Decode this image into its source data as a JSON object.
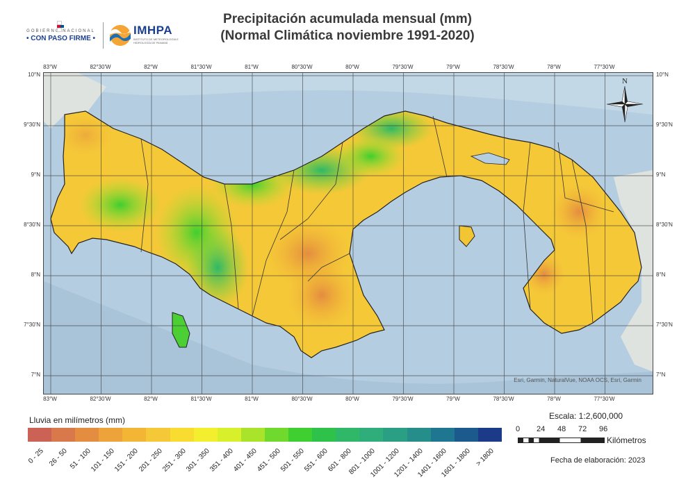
{
  "header": {
    "gobierno_top": "GOBIERNO NACIONAL",
    "gobierno_main": "• CON PASO FIRME •",
    "imhpa_name": "IMHPA",
    "imhpa_sub": "INSTITUTO DE METEOROLOGÍA E HIDROLOGÍA DE PANAMÁ",
    "title_line1": "Precipitación acumulada mensual (mm)",
    "title_line2": "(Normal Climática noviembre 1991-2020)"
  },
  "map": {
    "lon_ticks": [
      "83°W",
      "82°30'W",
      "82°W",
      "81°30'W",
      "81°W",
      "80°30'W",
      "80°W",
      "79°30'W",
      "79°W",
      "78°30'W",
      "78°W",
      "77°30'W"
    ],
    "lat_ticks": [
      "10°N",
      "9°30'N",
      "9°N",
      "8°30'N",
      "8°N",
      "7°30'N",
      "7°N"
    ],
    "north_label": "N",
    "attribution": "Esri, Garmin, NaturalVue, NOAA OCS, Esri, Garmin",
    "colors": {
      "ocean": "#b4cde0",
      "land_bg": "#dfe3df",
      "border": "#222222"
    }
  },
  "legend": {
    "title": "Lluvia en milímetros (mm)",
    "classes": [
      {
        "label": "0 - 25",
        "color": "#cc6155"
      },
      {
        "label": "26 - 50",
        "color": "#d9784a"
      },
      {
        "label": "51 - 100",
        "color": "#e48c40"
      },
      {
        "label": "101 - 150",
        "color": "#eea23a"
      },
      {
        "label": "151 - 200",
        "color": "#f2b535"
      },
      {
        "label": "201 - 250",
        "color": "#f5c838"
      },
      {
        "label": "251 - 300",
        "color": "#f8dc30"
      },
      {
        "label": "301 - 350",
        "color": "#f3ef2e"
      },
      {
        "label": "351 - 400",
        "color": "#d8ef2c"
      },
      {
        "label": "401 - 450",
        "color": "#a9e32a"
      },
      {
        "label": "451 - 500",
        "color": "#6fd92e"
      },
      {
        "label": "501 - 550",
        "color": "#3fcf30"
      },
      {
        "label": "551 - 600",
        "color": "#2fc24a"
      },
      {
        "label": "601 - 800",
        "color": "#2fb867"
      },
      {
        "label": "801 - 1000",
        "color": "#2fae7c"
      },
      {
        "label": "1001 - 1200",
        "color": "#2a9f84"
      },
      {
        "label": "1201 - 1400",
        "color": "#258e8a"
      },
      {
        "label": "1401 - 1600",
        "color": "#1f7690"
      },
      {
        "label": "1601 - 1800",
        "color": "#1c5a8e"
      },
      {
        "label": "> 1800",
        "color": "#1b3a88"
      }
    ]
  },
  "scale": {
    "label": "Escala: 1:2,600,000",
    "numbers": [
      "0",
      "24",
      "48",
      "72",
      "96"
    ],
    "unit": "Kilómetros"
  },
  "footer": {
    "fecha": "Fecha de elaboración: 2023"
  }
}
